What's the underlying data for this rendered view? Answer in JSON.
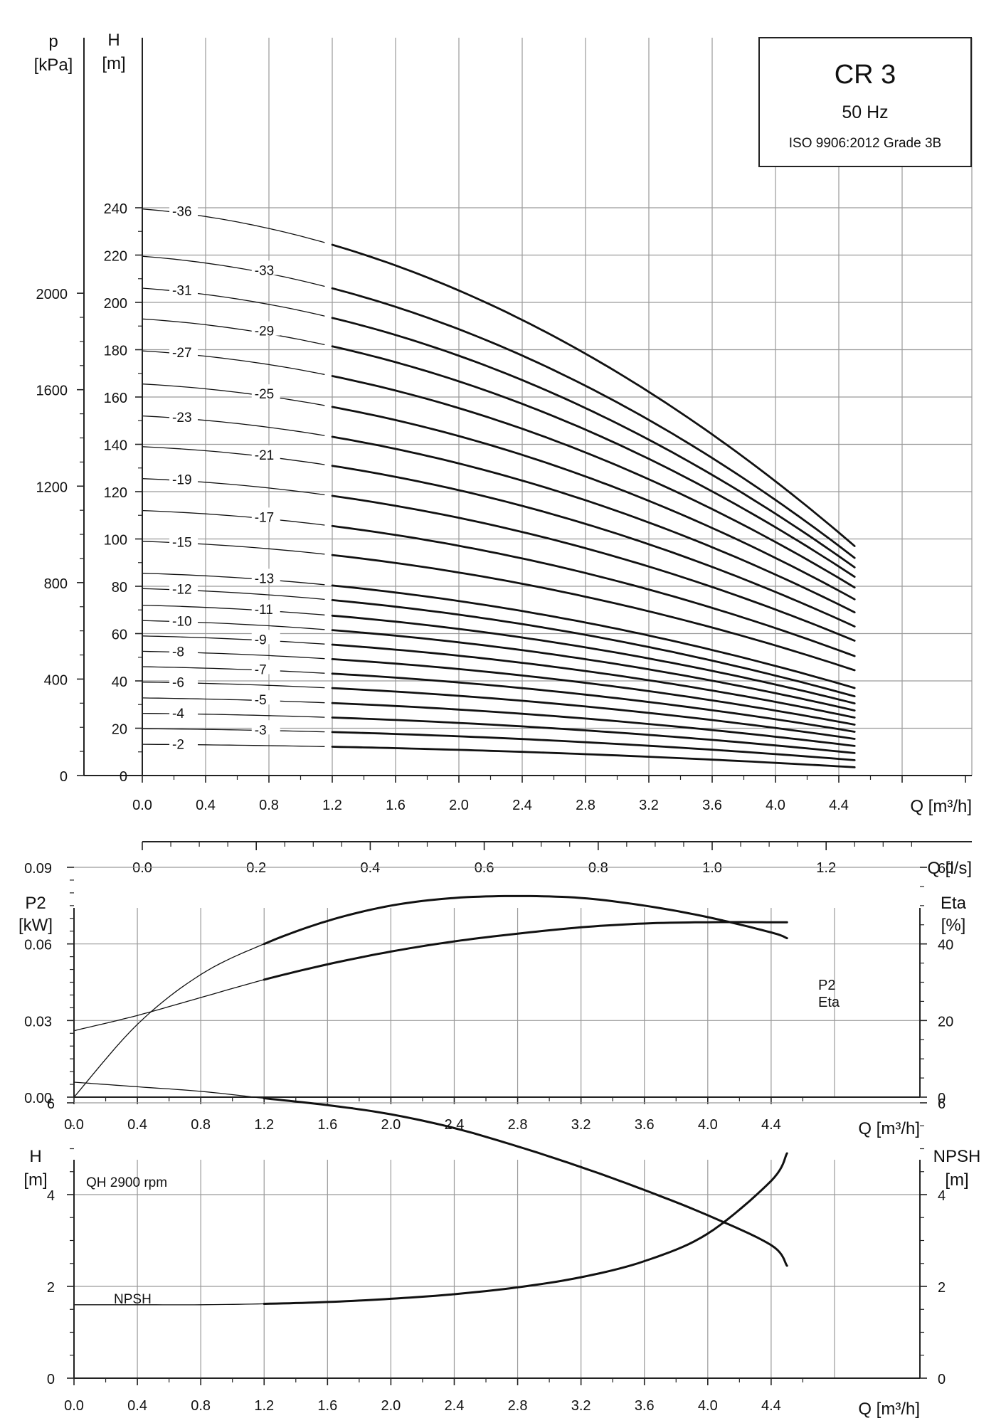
{
  "chart_data": [
    {
      "type": "line",
      "title": "CR 3",
      "subtitle": "50 Hz",
      "standard": "ISO 9906:2012 Grade 3B",
      "xlabel": "Q [m³/h]",
      "xlabel2": "Q [l/s]",
      "ylabel_left": "p",
      "ylabel_left_unit": "[kPa]",
      "ylabel": "H",
      "ylabel_unit": "[m]",
      "xlim": [
        0,
        4.5
      ],
      "ylim": [
        0,
        240
      ],
      "pressure_ticks": [
        "0",
        "400",
        "800",
        "1200",
        "1600",
        "2000"
      ],
      "x_ticks": [
        "0.0",
        "0.4",
        "0.8",
        "1.2",
        "1.6",
        "2.0",
        "2.4",
        "2.8",
        "3.2",
        "3.6",
        "4.0",
        "4.4"
      ],
      "y_ticks": [
        "0",
        "20",
        "40",
        "60",
        "80",
        "100",
        "120",
        "140",
        "160",
        "180",
        "200",
        "220",
        "240"
      ],
      "ls_ticks": [
        "0.0",
        "0.2",
        "0.4",
        "0.6",
        "0.8",
        "1.0",
        "1.2"
      ],
      "grid": true,
      "series": [
        {
          "name": "-2",
          "h0": 13.2,
          "h_end": 3.5,
          "h_end_x": 4.5
        },
        {
          "name": "-3",
          "h0": 19.8,
          "h_end": 6.5,
          "h_end_x": 4.5
        },
        {
          "name": "-4",
          "h0": 26.3,
          "h_end": 9.5,
          "h_end_x": 4.5
        },
        {
          "name": "-5",
          "h0": 32.8,
          "h_end": 12.5,
          "h_end_x": 4.5
        },
        {
          "name": "-6",
          "h0": 39.5,
          "h_end": 15.5,
          "h_end_x": 4.5
        },
        {
          "name": "-7",
          "h0": 46.0,
          "h_end": 18.5,
          "h_end_x": 4.5
        },
        {
          "name": "-8",
          "h0": 52.5,
          "h_end": 21.5,
          "h_end_x": 4.5
        },
        {
          "name": "-9",
          "h0": 59.0,
          "h_end": 24.5,
          "h_end_x": 4.5
        },
        {
          "name": "-10",
          "h0": 65.5,
          "h_end": 27.5,
          "h_end_x": 4.5
        },
        {
          "name": "-11",
          "h0": 72.0,
          "h_end": 30.5,
          "h_end_x": 4.5
        },
        {
          "name": "-12",
          "h0": 79.0,
          "h_end": 33.5,
          "h_end_x": 4.5
        },
        {
          "name": "-13",
          "h0": 85.5,
          "h_end": 37.0,
          "h_end_x": 4.5
        },
        {
          "name": "-15",
          "h0": 99.0,
          "h_end": 44.5,
          "h_end_x": 4.5
        },
        {
          "name": "-17",
          "h0": 112.0,
          "h_end": 50.5,
          "h_end_x": 4.5
        },
        {
          "name": "-19",
          "h0": 125.5,
          "h_end": 57.0,
          "h_end_x": 4.5
        },
        {
          "name": "-21",
          "h0": 139.0,
          "h_end": 63.0,
          "h_end_x": 4.5
        },
        {
          "name": "-23",
          "h0": 152.0,
          "h_end": 69.0,
          "h_end_x": 4.5
        },
        {
          "name": "-25",
          "h0": 165.5,
          "h_end": 74.5,
          "h_end_x": 4.5
        },
        {
          "name": "-27",
          "h0": 179.5,
          "h_end": 79.5,
          "h_end_x": 4.5
        },
        {
          "name": "-29",
          "h0": 193.0,
          "h_end": 84.0,
          "h_end_x": 4.5
        },
        {
          "name": "-31",
          "h0": 206.0,
          "h_end": 88.0,
          "h_end_x": 4.5
        },
        {
          "name": "-33",
          "h0": 219.5,
          "h_end": 92.0,
          "h_end_x": 4.5
        },
        {
          "name": "-36",
          "h0": 239.5,
          "h_end": 97.0,
          "h_end_x": 4.5
        }
      ]
    },
    {
      "type": "line",
      "xlabel": "Q [m³/h]",
      "ylabel": "P2",
      "ylabel_unit": "[kW]",
      "ylabel_right": "Eta",
      "ylabel_right_unit": "[%]",
      "xlim": [
        0,
        4.5
      ],
      "ylim": [
        0,
        0.1
      ],
      "ylim_right": [
        0,
        60
      ],
      "x_ticks": [
        "0.0",
        "0.4",
        "0.8",
        "1.2",
        "1.6",
        "2.0",
        "2.4",
        "2.8",
        "3.2",
        "3.6",
        "4.0",
        "4.4"
      ],
      "y_ticks": [
        "0.00",
        "0.03",
        "0.06",
        "0.09"
      ],
      "y_ticks_right": [
        "0",
        "20",
        "40",
        "60"
      ],
      "grid": true,
      "series": [
        {
          "name": "P2",
          "axis": "left",
          "x": [
            0,
            0.4,
            0.8,
            1.2,
            1.6,
            2.0,
            2.4,
            2.8,
            3.2,
            3.6,
            4.0,
            4.4,
            4.5
          ],
          "y": [
            0.026,
            0.032,
            0.039,
            0.046,
            0.052,
            0.057,
            0.061,
            0.064,
            0.0665,
            0.068,
            0.0685,
            0.0685,
            0.0685
          ]
        },
        {
          "name": "Eta",
          "axis": "right",
          "x": [
            0,
            0.4,
            0.8,
            1.2,
            1.6,
            2.0,
            2.4,
            2.8,
            3.2,
            3.6,
            4.0,
            4.4,
            4.5
          ],
          "y": [
            0,
            19,
            32,
            40,
            46,
            50,
            52,
            52.5,
            52,
            50,
            47,
            43,
            41.5
          ]
        }
      ]
    },
    {
      "type": "line",
      "xlabel": "Q [m³/h]",
      "ylabel": "H",
      "ylabel_unit": "[m]",
      "ylabel_right": "NPSH",
      "ylabel_right_unit": "[m]",
      "xlim": [
        0,
        4.5
      ],
      "ylim": [
        0,
        7
      ],
      "x_ticks": [
        "0.0",
        "0.4",
        "0.8",
        "1.2",
        "1.6",
        "2.0",
        "2.4",
        "2.8",
        "3.2",
        "3.6",
        "4.0",
        "4.4"
      ],
      "y_ticks": [
        "0",
        "2",
        "4",
        "6"
      ],
      "y_ticks_right": [
        "0",
        "2",
        "4",
        "6"
      ],
      "grid": true,
      "series": [
        {
          "name": "QH 2900 rpm",
          "axis": "left",
          "x": [
            0,
            0.4,
            0.8,
            1.2,
            1.6,
            2.0,
            2.4,
            2.8,
            3.2,
            3.6,
            4.0,
            4.4,
            4.5
          ],
          "y": [
            6.45,
            6.35,
            6.25,
            6.1,
            5.95,
            5.75,
            5.45,
            5.05,
            4.6,
            4.1,
            3.55,
            2.9,
            2.45
          ]
        },
        {
          "name": "NPSH",
          "axis": "right",
          "x": [
            0,
            0.4,
            0.8,
            1.2,
            1.6,
            2.0,
            2.4,
            2.8,
            3.2,
            3.6,
            4.0,
            4.4,
            4.5
          ],
          "y": [
            1.6,
            1.6,
            1.6,
            1.62,
            1.66,
            1.73,
            1.83,
            1.98,
            2.2,
            2.55,
            3.15,
            4.3,
            4.9
          ]
        }
      ]
    }
  ]
}
